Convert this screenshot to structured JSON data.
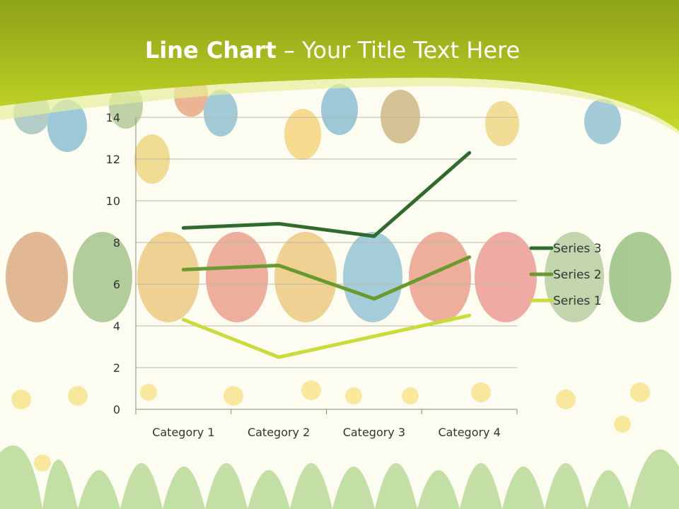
{
  "title": {
    "bold": "Line Chart",
    "rest": " – Your Title Text Here"
  },
  "colors": {
    "header_top": "#8ea218",
    "header_bottom": "#c8dc2a",
    "background": "#fdfcf0",
    "series_1": "#c8dc3c",
    "series_2": "#6a9a2e",
    "series_3": "#2f6b2e"
  },
  "chart_data": {
    "type": "line",
    "categories": [
      "Category 1",
      "Category 2",
      "Category 3",
      "Category 4"
    ],
    "ylim": [
      0,
      14
    ],
    "yticks": [
      "0",
      "2",
      "4",
      "6",
      "8",
      "10",
      "12",
      "14"
    ],
    "grid": true,
    "legend_position": "right",
    "series": [
      {
        "name": "Series 1",
        "values": [
          4.3,
          2.5,
          3.5,
          4.5
        ]
      },
      {
        "name": "Series 2",
        "values": [
          6.7,
          6.9,
          5.3,
          7.3
        ]
      },
      {
        "name": "Series 3",
        "values": [
          8.7,
          8.9,
          8.3,
          12.3
        ]
      }
    ],
    "legend_order": [
      "Series 3",
      "Series 2",
      "Series 1"
    ]
  }
}
